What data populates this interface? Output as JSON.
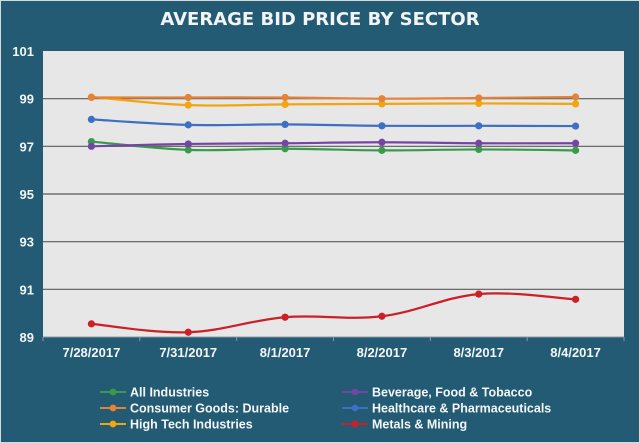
{
  "chart_data": {
    "type": "line",
    "title": "AVERAGE BID PRICE BY SECTOR",
    "xlabel": "",
    "ylabel": "",
    "categories": [
      "7/28/2017",
      "7/31/2017",
      "8/1/2017",
      "8/2/2017",
      "8/3/2017",
      "8/4/2017"
    ],
    "ylim": [
      89,
      101
    ],
    "yticks": [
      89,
      91,
      93,
      95,
      97,
      99,
      101
    ],
    "grid": true,
    "legend_position": "bottom",
    "series": [
      {
        "name": "All Industries",
        "color": "#3a9a4b",
        "values": [
          97.2,
          96.85,
          96.9,
          96.83,
          96.87,
          96.83
        ]
      },
      {
        "name": "Beverage, Food & Tobacco",
        "color": "#7446a3",
        "values": [
          97.0,
          97.1,
          97.13,
          97.17,
          97.13,
          97.13
        ]
      },
      {
        "name": "Consumer Goods: Durable",
        "color": "#e58237",
        "values": [
          99.05,
          99.05,
          99.05,
          99.0,
          99.03,
          99.07
        ]
      },
      {
        "name": "Healthcare & Pharmaceuticals",
        "color": "#3d6fc2",
        "values": [
          98.13,
          97.9,
          97.92,
          97.86,
          97.86,
          97.85
        ]
      },
      {
        "name": "High Tech Industries",
        "color": "#f1a50e",
        "values": [
          99.07,
          98.73,
          98.76,
          98.78,
          98.8,
          98.78
        ]
      },
      {
        "name": "Metals & Mining",
        "color": "#cc1f27",
        "values": [
          89.55,
          89.2,
          89.83,
          89.87,
          90.8,
          90.58
        ]
      }
    ]
  }
}
